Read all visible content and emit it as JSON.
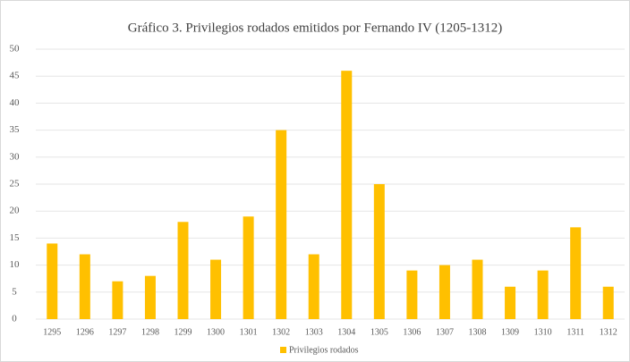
{
  "chart_data": {
    "type": "bar",
    "title": "Gráfico 3. Privilegios rodados emitidos por Fernando IV (1205-1312)",
    "categories": [
      "1295",
      "1296",
      "1297",
      "1298",
      "1299",
      "1300",
      "1301",
      "1302",
      "1303",
      "1304",
      "1305",
      "1306",
      "1307",
      "1308",
      "1309",
      "1310",
      "1311",
      "1312"
    ],
    "series": [
      {
        "name": "Privilegios rodados",
        "color": "#ffc000",
        "values": [
          14,
          12,
          7,
          8,
          18,
          11,
          19,
          35,
          12,
          46,
          25,
          9,
          10,
          11,
          6,
          9,
          17,
          6
        ]
      }
    ],
    "ylim": [
      0,
      50
    ],
    "yticks": [
      0,
      5,
      10,
      15,
      20,
      25,
      30,
      35,
      40,
      45,
      50
    ],
    "grid": true,
    "legend": "bottom"
  }
}
